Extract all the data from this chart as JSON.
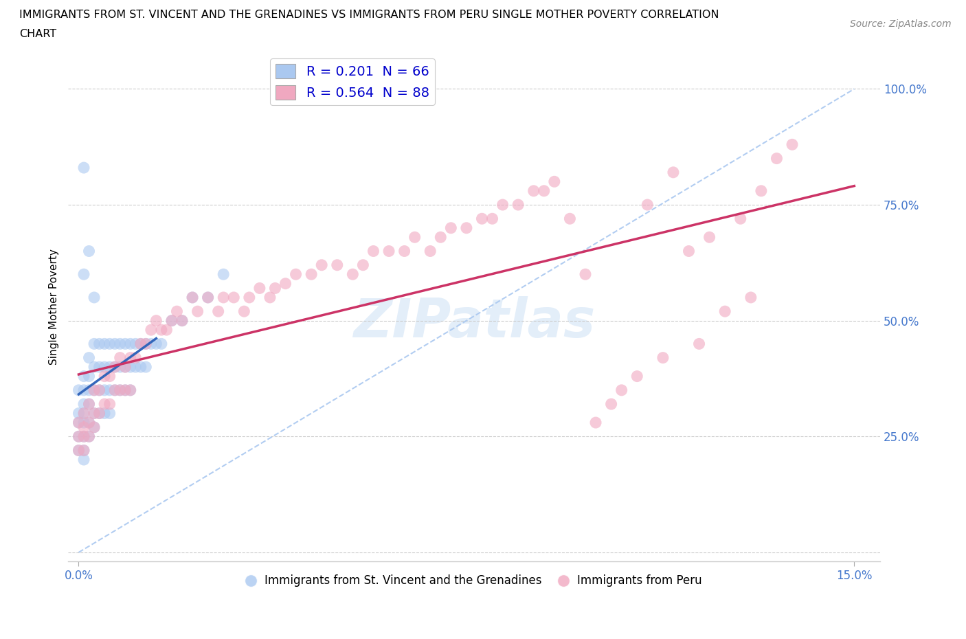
{
  "title_line1": "IMMIGRANTS FROM ST. VINCENT AND THE GRENADINES VS IMMIGRANTS FROM PERU SINGLE MOTHER POVERTY CORRELATION",
  "title_line2": "CHART",
  "source_text": "Source: ZipAtlas.com",
  "ylabel": "Single Mother Poverty",
  "R_blue": 0.201,
  "N_blue": 66,
  "R_pink": 0.564,
  "N_pink": 88,
  "blue_color": "#aac8f0",
  "blue_line_color": "#3366bb",
  "pink_color": "#f0a8c0",
  "pink_line_color": "#cc3366",
  "dashed_line_color": "#aac8f0",
  "legend_label_blue": "Immigrants from St. Vincent and the Grenadines",
  "legend_label_pink": "Immigrants from Peru",
  "figsize": [
    14.06,
    9.3
  ],
  "dpi": 100,
  "blue_x": [
    0.0,
    0.0,
    0.0,
    0.0,
    0.0,
    0.001,
    0.001,
    0.001,
    0.001,
    0.001,
    0.001,
    0.001,
    0.001,
    0.002,
    0.002,
    0.002,
    0.002,
    0.002,
    0.002,
    0.003,
    0.003,
    0.003,
    0.003,
    0.003,
    0.004,
    0.004,
    0.004,
    0.004,
    0.005,
    0.005,
    0.005,
    0.005,
    0.006,
    0.006,
    0.006,
    0.006,
    0.007,
    0.007,
    0.007,
    0.008,
    0.008,
    0.008,
    0.009,
    0.009,
    0.009,
    0.01,
    0.01,
    0.01,
    0.011,
    0.011,
    0.012,
    0.012,
    0.013,
    0.013,
    0.014,
    0.015,
    0.016,
    0.018,
    0.02,
    0.022,
    0.025,
    0.028,
    0.001,
    0.002,
    0.001,
    0.003
  ],
  "blue_y": [
    0.35,
    0.3,
    0.28,
    0.25,
    0.22,
    0.38,
    0.35,
    0.32,
    0.3,
    0.28,
    0.25,
    0.22,
    0.2,
    0.42,
    0.38,
    0.35,
    0.32,
    0.28,
    0.25,
    0.45,
    0.4,
    0.35,
    0.3,
    0.27,
    0.45,
    0.4,
    0.35,
    0.3,
    0.45,
    0.4,
    0.35,
    0.3,
    0.45,
    0.4,
    0.35,
    0.3,
    0.45,
    0.4,
    0.35,
    0.45,
    0.4,
    0.35,
    0.45,
    0.4,
    0.35,
    0.45,
    0.4,
    0.35,
    0.45,
    0.4,
    0.45,
    0.4,
    0.45,
    0.4,
    0.45,
    0.45,
    0.45,
    0.5,
    0.5,
    0.55,
    0.55,
    0.6,
    0.83,
    0.65,
    0.6,
    0.55
  ],
  "pink_x": [
    0.0,
    0.0,
    0.0,
    0.001,
    0.001,
    0.001,
    0.001,
    0.002,
    0.002,
    0.002,
    0.003,
    0.003,
    0.003,
    0.004,
    0.004,
    0.005,
    0.005,
    0.006,
    0.006,
    0.007,
    0.007,
    0.008,
    0.008,
    0.009,
    0.009,
    0.01,
    0.01,
    0.011,
    0.012,
    0.013,
    0.014,
    0.015,
    0.016,
    0.017,
    0.018,
    0.019,
    0.02,
    0.022,
    0.023,
    0.025,
    0.027,
    0.028,
    0.03,
    0.032,
    0.033,
    0.035,
    0.037,
    0.038,
    0.04,
    0.042,
    0.045,
    0.047,
    0.05,
    0.053,
    0.055,
    0.057,
    0.06,
    0.063,
    0.065,
    0.068,
    0.07,
    0.072,
    0.075,
    0.078,
    0.08,
    0.082,
    0.085,
    0.088,
    0.09,
    0.092,
    0.095,
    0.098,
    0.1,
    0.103,
    0.105,
    0.108,
    0.11,
    0.113,
    0.115,
    0.118,
    0.12,
    0.122,
    0.125,
    0.128,
    0.13,
    0.132,
    0.135,
    0.138
  ],
  "pink_y": [
    0.28,
    0.25,
    0.22,
    0.3,
    0.27,
    0.25,
    0.22,
    0.32,
    0.28,
    0.25,
    0.35,
    0.3,
    0.27,
    0.35,
    0.3,
    0.38,
    0.32,
    0.38,
    0.32,
    0.4,
    0.35,
    0.42,
    0.35,
    0.4,
    0.35,
    0.42,
    0.35,
    0.42,
    0.45,
    0.45,
    0.48,
    0.5,
    0.48,
    0.48,
    0.5,
    0.52,
    0.5,
    0.55,
    0.52,
    0.55,
    0.52,
    0.55,
    0.55,
    0.52,
    0.55,
    0.57,
    0.55,
    0.57,
    0.58,
    0.6,
    0.6,
    0.62,
    0.62,
    0.6,
    0.62,
    0.65,
    0.65,
    0.65,
    0.68,
    0.65,
    0.68,
    0.7,
    0.7,
    0.72,
    0.72,
    0.75,
    0.75,
    0.78,
    0.78,
    0.8,
    0.72,
    0.6,
    0.28,
    0.32,
    0.35,
    0.38,
    0.75,
    0.42,
    0.82,
    0.65,
    0.45,
    0.68,
    0.52,
    0.72,
    0.55,
    0.78,
    0.85,
    0.88
  ]
}
